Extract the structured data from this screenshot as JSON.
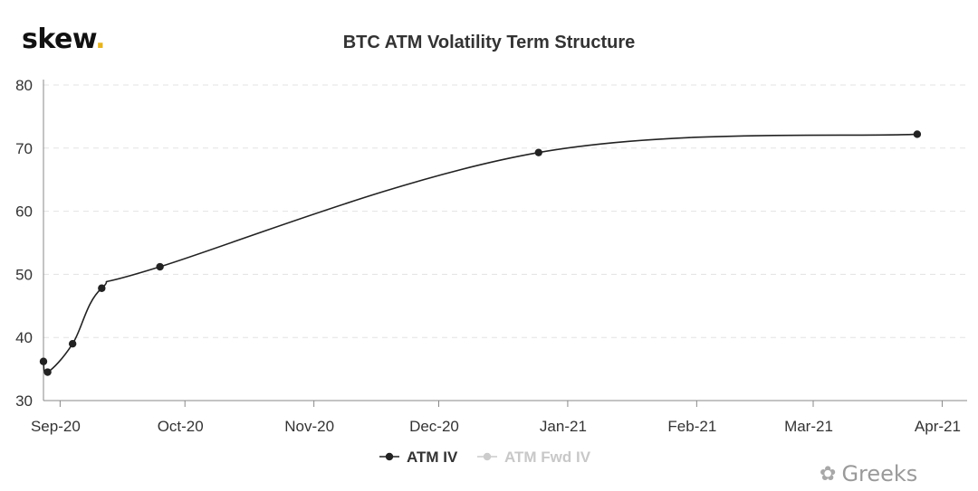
{
  "header": {
    "logo_text": "skew",
    "logo_dot": "."
  },
  "watermark": {
    "icon": "wechat-icon",
    "text": "Greeks"
  },
  "chart_data": {
    "type": "line",
    "title": "BTC ATM Volatility Term Structure",
    "xlabel": "",
    "ylabel": "",
    "x_ticks": [
      "Sep-20",
      "Oct-20",
      "Nov-20",
      "Dec-20",
      "Jan-21",
      "Feb-21",
      "Mar-21",
      "Apr-21"
    ],
    "y_ticks": [
      30,
      40,
      50,
      60,
      70,
      80
    ],
    "ylim": [
      30,
      80
    ],
    "xlim": [
      "2020-08-28",
      "2021-04-07"
    ],
    "grid": true,
    "legend_position": "bottom-center",
    "series": [
      {
        "name": "ATM IV",
        "color": "#222222",
        "points": [
          {
            "date": "2020-08-28",
            "value": 36.2
          },
          {
            "date": "2020-08-29",
            "value": 34.5
          },
          {
            "date": "2020-09-04",
            "value": 39.0
          },
          {
            "date": "2020-09-11",
            "value": 47.8
          },
          {
            "date": "2020-09-25",
            "value": 51.2
          },
          {
            "date": "2020-12-25",
            "value": 69.3
          },
          {
            "date": "2021-03-26",
            "value": 72.2
          }
        ]
      },
      {
        "name": "ATM Fwd IV",
        "color": "#cccccc",
        "points": []
      }
    ]
  }
}
